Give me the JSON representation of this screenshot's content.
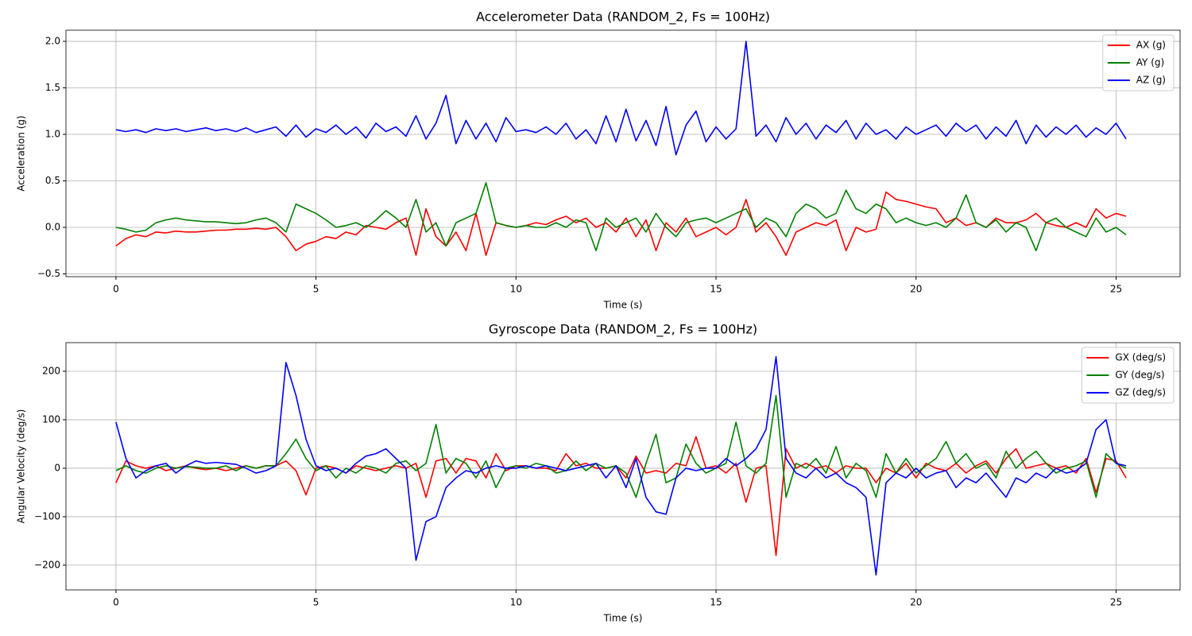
{
  "chart_data": [
    {
      "type": "line",
      "title": "Accelerometer Data (RANDOM_2, Fs = 100Hz)",
      "x_label": "Time (s)",
      "y_label": "Acceleration (g)",
      "x": [
        0,
        0.25,
        0.5,
        0.75,
        1,
        1.25,
        1.5,
        1.75,
        2,
        2.25,
        2.5,
        2.75,
        3,
        3.25,
        3.5,
        3.75,
        4,
        4.25,
        4.5,
        4.75,
        5,
        5.25,
        5.5,
        5.75,
        6,
        6.25,
        6.5,
        6.75,
        7,
        7.25,
        7.5,
        7.75,
        8,
        8.25,
        8.5,
        8.75,
        9,
        9.25,
        9.5,
        9.75,
        10,
        10.25,
        10.5,
        10.75,
        11,
        11.25,
        11.5,
        11.75,
        12,
        12.25,
        12.5,
        12.75,
        13,
        13.25,
        13.5,
        13.75,
        14,
        14.25,
        14.5,
        14.75,
        15,
        15.25,
        15.5,
        15.75,
        16,
        16.25,
        16.5,
        16.75,
        17,
        17.25,
        17.5,
        17.75,
        18,
        18.25,
        18.5,
        18.75,
        19,
        19.25,
        19.5,
        19.75,
        20,
        20.25,
        20.5,
        20.75,
        21,
        21.25,
        21.5,
        21.75,
        22,
        22.25,
        22.5,
        22.75,
        23,
        23.25,
        23.5,
        23.75,
        24,
        24.25,
        24.5,
        24.75,
        25,
        25.25
      ],
      "series": [
        {
          "name": "AX (g)",
          "color": "#ff0000",
          "values": [
            -0.2,
            -0.12,
            -0.08,
            -0.1,
            -0.05,
            -0.06,
            -0.04,
            -0.05,
            -0.05,
            -0.04,
            -0.03,
            -0.03,
            -0.02,
            -0.02,
            -0.01,
            -0.02,
            0.0,
            -0.1,
            -0.25,
            -0.18,
            -0.15,
            -0.1,
            -0.12,
            -0.05,
            -0.08,
            0.02,
            0.0,
            -0.02,
            0.05,
            0.1,
            -0.3,
            0.2,
            -0.1,
            -0.2,
            -0.05,
            -0.25,
            0.15,
            -0.3,
            0.05,
            0.02,
            0.0,
            0.02,
            0.05,
            0.03,
            0.08,
            0.12,
            0.05,
            0.1,
            0.0,
            0.05,
            -0.05,
            0.1,
            -0.1,
            0.08,
            -0.25,
            0.05,
            -0.05,
            0.1,
            -0.1,
            -0.05,
            0.0,
            -0.08,
            0.0,
            0.3,
            -0.05,
            0.05,
            -0.1,
            -0.3,
            -0.05,
            0.0,
            0.05,
            0.02,
            0.08,
            -0.25,
            0.0,
            -0.05,
            -0.02,
            0.38,
            0.3,
            0.28,
            0.25,
            0.22,
            0.2,
            0.05,
            0.1,
            0.02,
            0.05,
            0.0,
            0.1,
            0.05,
            0.05,
            0.08,
            0.15,
            0.05,
            0.02,
            0.0,
            0.05,
            0.0,
            0.2,
            0.1,
            0.15,
            0.12
          ]
        },
        {
          "name": "AY (g)",
          "color": "#008000",
          "values": [
            0.0,
            -0.02,
            -0.05,
            -0.03,
            0.05,
            0.08,
            0.1,
            0.08,
            0.07,
            0.06,
            0.06,
            0.05,
            0.04,
            0.05,
            0.08,
            0.1,
            0.05,
            -0.05,
            0.25,
            0.2,
            0.15,
            0.08,
            0.0,
            0.02,
            0.05,
            0.0,
            0.08,
            0.18,
            0.1,
            0.0,
            0.3,
            -0.05,
            0.05,
            -0.2,
            0.05,
            0.1,
            0.15,
            0.48,
            0.05,
            0.02,
            0.0,
            0.02,
            0.0,
            0.0,
            0.05,
            0.0,
            0.08,
            0.05,
            -0.25,
            0.1,
            0.0,
            0.05,
            0.1,
            -0.05,
            0.15,
            0.0,
            -0.1,
            0.05,
            0.08,
            0.1,
            0.05,
            0.1,
            0.15,
            0.2,
            0.0,
            0.1,
            0.05,
            -0.1,
            0.15,
            0.25,
            0.2,
            0.1,
            0.15,
            0.4,
            0.2,
            0.15,
            0.25,
            0.2,
            0.05,
            0.1,
            0.05,
            0.02,
            0.05,
            0.0,
            0.1,
            0.35,
            0.05,
            0.0,
            0.08,
            -0.05,
            0.05,
            0.0,
            -0.25,
            0.05,
            0.1,
            0.0,
            -0.05,
            -0.1,
            0.1,
            -0.05,
            0.0,
            -0.08
          ]
        },
        {
          "name": "AZ (g)",
          "color": "#0000ff",
          "values": [
            1.05,
            1.03,
            1.05,
            1.02,
            1.06,
            1.04,
            1.06,
            1.03,
            1.05,
            1.07,
            1.04,
            1.06,
            1.03,
            1.07,
            1.02,
            1.05,
            1.08,
            0.98,
            1.1,
            0.97,
            1.06,
            1.02,
            1.1,
            1.0,
            1.08,
            0.96,
            1.12,
            1.03,
            1.08,
            0.98,
            1.2,
            0.95,
            1.12,
            1.42,
            0.9,
            1.15,
            0.95,
            1.12,
            0.92,
            1.18,
            1.03,
            1.05,
            1.02,
            1.08,
            1.0,
            1.12,
            0.95,
            1.05,
            0.9,
            1.2,
            0.92,
            1.27,
            0.93,
            1.15,
            0.88,
            1.3,
            0.78,
            1.1,
            1.25,
            0.92,
            1.08,
            0.95,
            1.06,
            2.0,
            0.98,
            1.1,
            0.92,
            1.18,
            1.0,
            1.12,
            0.95,
            1.1,
            1.02,
            1.15,
            0.95,
            1.12,
            1.0,
            1.05,
            0.95,
            1.08,
            1.0,
            1.05,
            1.1,
            0.98,
            1.12,
            1.03,
            1.1,
            0.95,
            1.08,
            0.98,
            1.15,
            0.9,
            1.1,
            0.97,
            1.08,
            1.0,
            1.1,
            0.97,
            1.07,
            1.0,
            1.12,
            0.95
          ]
        }
      ],
      "xlim": [
        -1.25,
        26.6
      ],
      "ylim": [
        -0.53,
        2.12
      ],
      "xticks": [
        0,
        5,
        10,
        15,
        20,
        25
      ],
      "yticks": [
        {
          "value": -0.5,
          "label": "−0.5"
        },
        {
          "value": 0,
          "label": "0.0"
        },
        {
          "value": 0.5,
          "label": "0.5"
        },
        {
          "value": 1,
          "label": "1.0"
        },
        {
          "value": 1.5,
          "label": "1.5"
        },
        {
          "value": 2,
          "label": "2.0"
        }
      ],
      "grid": true,
      "legend": "upper right"
    },
    {
      "type": "line",
      "title": "Gyroscope Data (RANDOM_2, Fs = 100Hz)",
      "x_label": "Time (s)",
      "y_label": "Angular Velocity (deg/s)",
      "x": [
        0,
        0.25,
        0.5,
        0.75,
        1,
        1.25,
        1.5,
        1.75,
        2,
        2.25,
        2.5,
        2.75,
        3,
        3.25,
        3.5,
        3.75,
        4,
        4.25,
        4.5,
        4.75,
        5,
        5.25,
        5.5,
        5.75,
        6,
        6.25,
        6.5,
        6.75,
        7,
        7.25,
        7.5,
        7.75,
        8,
        8.25,
        8.5,
        8.75,
        9,
        9.25,
        9.5,
        9.75,
        10,
        10.25,
        10.5,
        10.75,
        11,
        11.25,
        11.5,
        11.75,
        12,
        12.25,
        12.5,
        12.75,
        13,
        13.25,
        13.5,
        13.75,
        14,
        14.25,
        14.5,
        14.75,
        15,
        15.25,
        15.5,
        15.75,
        16,
        16.25,
        16.5,
        16.75,
        17,
        17.25,
        17.5,
        17.75,
        18,
        18.25,
        18.5,
        18.75,
        19,
        19.25,
        19.5,
        19.75,
        20,
        20.25,
        20.5,
        20.75,
        21,
        21.25,
        21.5,
        21.75,
        22,
        22.25,
        22.5,
        22.75,
        23,
        23.25,
        23.5,
        23.75,
        24,
        24.25,
        24.5,
        24.75,
        25,
        25.25
      ],
      "series": [
        {
          "name": "GX (deg/s)",
          "color": "#ff0000",
          "values": [
            -30,
            15,
            5,
            0,
            5,
            -5,
            0,
            5,
            0,
            -3,
            0,
            -5,
            0,
            5,
            0,
            5,
            5,
            15,
            -5,
            -55,
            0,
            5,
            0,
            -10,
            5,
            0,
            -5,
            0,
            5,
            0,
            10,
            -60,
            15,
            20,
            -10,
            20,
            15,
            -20,
            30,
            -5,
            5,
            5,
            0,
            0,
            -5,
            30,
            5,
            10,
            0,
            0,
            5,
            -20,
            25,
            -10,
            -5,
            -10,
            10,
            5,
            65,
            0,
            5,
            -10,
            10,
            -70,
            0,
            5,
            -180,
            40,
            0,
            10,
            0,
            5,
            -10,
            5,
            0,
            0,
            -30,
            0,
            -10,
            10,
            -20,
            10,
            0,
            -5,
            10,
            -10,
            5,
            15,
            -10,
            20,
            40,
            0,
            5,
            10,
            0,
            5,
            -10,
            20,
            -50,
            20,
            15,
            -20
          ]
        },
        {
          "name": "GY (deg/s)",
          "color": "#008000",
          "values": [
            -5,
            5,
            -5,
            -10,
            0,
            5,
            0,
            3,
            2,
            0,
            0,
            5,
            -5,
            5,
            0,
            5,
            5,
            30,
            60,
            20,
            -5,
            5,
            -20,
            0,
            -10,
            5,
            0,
            -10,
            10,
            15,
            -5,
            10,
            90,
            -10,
            20,
            10,
            -20,
            15,
            -40,
            0,
            5,
            0,
            10,
            5,
            -10,
            -5,
            15,
            -5,
            10,
            0,
            5,
            -10,
            -60,
            10,
            70,
            -30,
            -20,
            50,
            10,
            -10,
            0,
            10,
            95,
            5,
            -10,
            10,
            150,
            -60,
            10,
            0,
            20,
            -10,
            45,
            -20,
            10,
            -5,
            -60,
            30,
            -10,
            20,
            -10,
            5,
            20,
            55,
            10,
            30,
            0,
            10,
            -20,
            35,
            0,
            20,
            35,
            10,
            -10,
            0,
            5,
            15,
            -60,
            30,
            10,
            0
          ]
        },
        {
          "name": "GZ (deg/s)",
          "color": "#0000ff",
          "values": [
            95,
            20,
            -20,
            -5,
            5,
            10,
            -10,
            5,
            15,
            10,
            12,
            10,
            8,
            0,
            -10,
            -5,
            5,
            218,
            150,
            60,
            5,
            -5,
            0,
            -10,
            10,
            25,
            30,
            40,
            20,
            0,
            -190,
            -110,
            -100,
            -40,
            -20,
            -5,
            -10,
            0,
            5,
            0,
            0,
            5,
            0,
            5,
            0,
            -5,
            0,
            5,
            10,
            -20,
            5,
            -40,
            20,
            -60,
            -90,
            -95,
            -20,
            0,
            -5,
            0,
            0,
            20,
            5,
            20,
            40,
            80,
            230,
            20,
            -10,
            -20,
            0,
            -20,
            -10,
            -30,
            -40,
            -60,
            -220,
            -30,
            -10,
            -20,
            0,
            -20,
            -10,
            -5,
            -40,
            -20,
            -30,
            -10,
            -35,
            -60,
            -20,
            -30,
            -10,
            -20,
            0,
            -10,
            -5,
            10,
            80,
            100,
            10,
            5
          ]
        }
      ],
      "xlim": [
        -1.25,
        26.6
      ],
      "ylim": [
        -251,
        259
      ],
      "xticks": [
        0,
        5,
        10,
        15,
        20,
        25
      ],
      "yticks": [
        {
          "value": -200,
          "label": "−200"
        },
        {
          "value": -100,
          "label": "−100"
        },
        0,
        100,
        200
      ],
      "grid": true,
      "legend": "upper right"
    }
  ]
}
